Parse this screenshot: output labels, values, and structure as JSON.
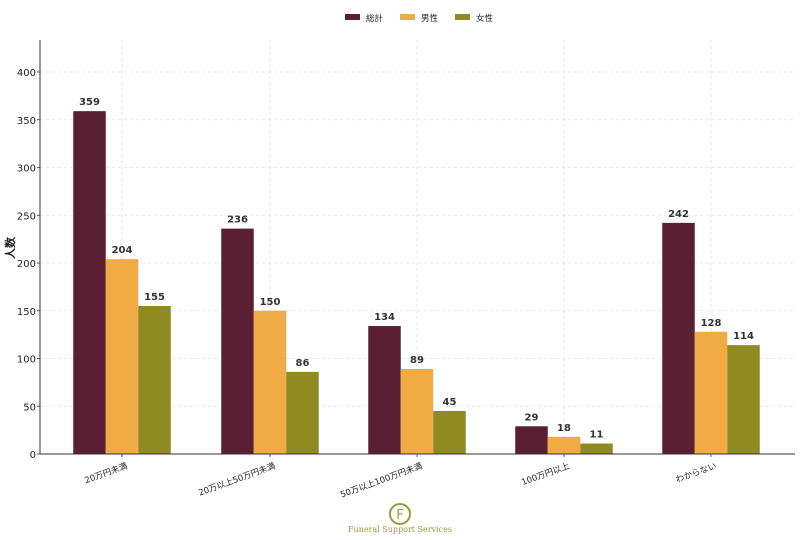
{
  "chart_data": {
    "type": "bar",
    "title": "",
    "xlabel": "",
    "ylabel": "人数",
    "ylim": [
      0,
      400
    ],
    "yticks": [
      0,
      50,
      100,
      150,
      200,
      250,
      300,
      350,
      400
    ],
    "grid": true,
    "legend_position": "top-center",
    "categories": [
      "20万円未満",
      "20万以上50万円未満",
      "50万以上100万円未満",
      "100万円以上",
      "わからない"
    ],
    "series": [
      {
        "name": "総計",
        "color": "#5a1f32",
        "values": [
          359,
          236,
          134,
          29,
          242
        ]
      },
      {
        "name": "男性",
        "color": "#f0ab45",
        "values": [
          204,
          150,
          89,
          18,
          128
        ]
      },
      {
        "name": "女性",
        "color": "#8f8a22",
        "values": [
          155,
          86,
          45,
          11,
          114
        ]
      }
    ]
  },
  "logo": {
    "letter": "F",
    "text": "Funeral Support Services"
  }
}
